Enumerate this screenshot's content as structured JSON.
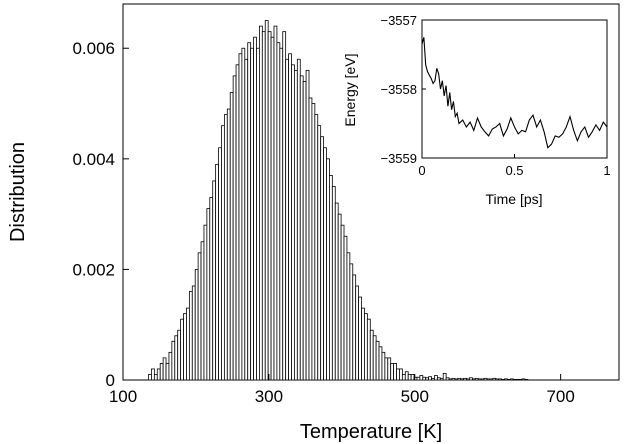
{
  "chart_data": [
    {
      "type": "bar",
      "xlabel": "Temperature [K]",
      "ylabel": "Distribution",
      "xlim": [
        100,
        780
      ],
      "ylim": [
        0,
        0.0068
      ],
      "xticks": [
        100,
        300,
        500,
        700
      ],
      "xtick_labels": [
        "100",
        "300",
        "500",
        "700"
      ],
      "yticks": [
        0,
        0.002,
        0.004,
        0.006
      ],
      "ytick_labels": [
        "0",
        "0.002",
        "0.004",
        "0.006"
      ],
      "bin_width": 4,
      "bins": [
        {
          "x": 137,
          "y": 0.0001
        },
        {
          "x": 141,
          "y": 0.0002
        },
        {
          "x": 145,
          "y": 0.0001
        },
        {
          "x": 149,
          "y": 0.0002
        },
        {
          "x": 153,
          "y": 0.0003
        },
        {
          "x": 157,
          "y": 0.0004
        },
        {
          "x": 161,
          "y": 0.0003
        },
        {
          "x": 165,
          "y": 0.0005
        },
        {
          "x": 169,
          "y": 0.0007
        },
        {
          "x": 173,
          "y": 0.0008
        },
        {
          "x": 177,
          "y": 0.0009
        },
        {
          "x": 181,
          "y": 0.0011
        },
        {
          "x": 185,
          "y": 0.0012
        },
        {
          "x": 189,
          "y": 0.0013
        },
        {
          "x": 193,
          "y": 0.0016
        },
        {
          "x": 197,
          "y": 0.0017
        },
        {
          "x": 201,
          "y": 0.002
        },
        {
          "x": 205,
          "y": 0.0023
        },
        {
          "x": 209,
          "y": 0.0025
        },
        {
          "x": 213,
          "y": 0.0028
        },
        {
          "x": 217,
          "y": 0.0031
        },
        {
          "x": 221,
          "y": 0.0033
        },
        {
          "x": 225,
          "y": 0.0036
        },
        {
          "x": 229,
          "y": 0.0039
        },
        {
          "x": 233,
          "y": 0.0042
        },
        {
          "x": 237,
          "y": 0.0046
        },
        {
          "x": 241,
          "y": 0.0048
        },
        {
          "x": 245,
          "y": 0.0049
        },
        {
          "x": 249,
          "y": 0.0052
        },
        {
          "x": 253,
          "y": 0.0055
        },
        {
          "x": 257,
          "y": 0.0057
        },
        {
          "x": 261,
          "y": 0.0059
        },
        {
          "x": 265,
          "y": 0.006
        },
        {
          "x": 269,
          "y": 0.0058
        },
        {
          "x": 273,
          "y": 0.0061
        },
        {
          "x": 277,
          "y": 0.006
        },
        {
          "x": 281,
          "y": 0.0062
        },
        {
          "x": 285,
          "y": 0.006
        },
        {
          "x": 289,
          "y": 0.0064
        },
        {
          "x": 293,
          "y": 0.0063
        },
        {
          "x": 297,
          "y": 0.0065
        },
        {
          "x": 301,
          "y": 0.0063
        },
        {
          "x": 305,
          "y": 0.0062
        },
        {
          "x": 309,
          "y": 0.0064
        },
        {
          "x": 313,
          "y": 0.0061
        },
        {
          "x": 317,
          "y": 0.006
        },
        {
          "x": 321,
          "y": 0.0063
        },
        {
          "x": 325,
          "y": 0.0058
        },
        {
          "x": 329,
          "y": 0.0059
        },
        {
          "x": 333,
          "y": 0.0057
        },
        {
          "x": 337,
          "y": 0.0056
        },
        {
          "x": 341,
          "y": 0.0058
        },
        {
          "x": 345,
          "y": 0.0055
        },
        {
          "x": 349,
          "y": 0.0054
        },
        {
          "x": 353,
          "y": 0.0056
        },
        {
          "x": 357,
          "y": 0.0051
        },
        {
          "x": 361,
          "y": 0.005
        },
        {
          "x": 365,
          "y": 0.0048
        },
        {
          "x": 369,
          "y": 0.0046
        },
        {
          "x": 373,
          "y": 0.0044
        },
        {
          "x": 377,
          "y": 0.0042
        },
        {
          "x": 381,
          "y": 0.004
        },
        {
          "x": 385,
          "y": 0.0037
        },
        {
          "x": 389,
          "y": 0.0035
        },
        {
          "x": 393,
          "y": 0.0032
        },
        {
          "x": 397,
          "y": 0.003
        },
        {
          "x": 401,
          "y": 0.0028
        },
        {
          "x": 405,
          "y": 0.0026
        },
        {
          "x": 409,
          "y": 0.0023
        },
        {
          "x": 413,
          "y": 0.0021
        },
        {
          "x": 417,
          "y": 0.0019
        },
        {
          "x": 421,
          "y": 0.0017
        },
        {
          "x": 425,
          "y": 0.0015
        },
        {
          "x": 429,
          "y": 0.0013
        },
        {
          "x": 433,
          "y": 0.0012
        },
        {
          "x": 437,
          "y": 0.0011
        },
        {
          "x": 441,
          "y": 0.0009
        },
        {
          "x": 445,
          "y": 0.0008
        },
        {
          "x": 449,
          "y": 0.0007
        },
        {
          "x": 453,
          "y": 0.0006
        },
        {
          "x": 457,
          "y": 0.0005
        },
        {
          "x": 461,
          "y": 0.0004
        },
        {
          "x": 465,
          "y": 0.0004
        },
        {
          "x": 469,
          "y": 0.0003
        },
        {
          "x": 473,
          "y": 0.0003
        },
        {
          "x": 477,
          "y": 0.0002
        },
        {
          "x": 481,
          "y": 0.0002
        },
        {
          "x": 485,
          "y": 0.0001
        },
        {
          "x": 489,
          "y": 0.00015
        },
        {
          "x": 493,
          "y": 0.0001
        },
        {
          "x": 497,
          "y": 0.0001
        },
        {
          "x": 501,
          "y": 5e-05
        },
        {
          "x": 505,
          "y": 5e-05
        },
        {
          "x": 509,
          "y": 8e-05
        },
        {
          "x": 513,
          "y": 5e-05
        },
        {
          "x": 517,
          "y": 4e-05
        },
        {
          "x": 521,
          "y": 6e-05
        },
        {
          "x": 525,
          "y": 3e-05
        },
        {
          "x": 529,
          "y": 8e-05
        },
        {
          "x": 533,
          "y": 4e-05
        },
        {
          "x": 537,
          "y": 3e-05
        },
        {
          "x": 541,
          "y": 0.00012
        },
        {
          "x": 545,
          "y": 4e-05
        },
        {
          "x": 549,
          "y": 2e-05
        },
        {
          "x": 553,
          "y": 3e-05
        },
        {
          "x": 557,
          "y": 2e-05
        },
        {
          "x": 561,
          "y": 3e-05
        },
        {
          "x": 565,
          "y": 2e-05
        },
        {
          "x": 569,
          "y": 3e-05
        },
        {
          "x": 573,
          "y": 2e-05
        },
        {
          "x": 577,
          "y": 4e-05
        },
        {
          "x": 581,
          "y": 2e-05
        },
        {
          "x": 585,
          "y": 3e-05
        },
        {
          "x": 589,
          "y": 2e-05
        },
        {
          "x": 593,
          "y": 2e-05
        },
        {
          "x": 597,
          "y": 3e-05
        },
        {
          "x": 601,
          "y": 2e-05
        },
        {
          "x": 605,
          "y": 2e-05
        },
        {
          "x": 609,
          "y": 3e-05
        },
        {
          "x": 613,
          "y": 2e-05
        },
        {
          "x": 617,
          "y": 2e-05
        },
        {
          "x": 621,
          "y": 1e-05
        },
        {
          "x": 625,
          "y": 2e-05
        },
        {
          "x": 629,
          "y": 1e-05
        },
        {
          "x": 633,
          "y": 2e-05
        },
        {
          "x": 637,
          "y": 1e-05
        },
        {
          "x": 641,
          "y": 1e-05
        },
        {
          "x": 645,
          "y": 1e-05
        },
        {
          "x": 649,
          "y": 2e-05
        },
        {
          "x": 653,
          "y": 1e-05
        }
      ]
    },
    {
      "type": "line",
      "xlabel": "Time [ps]",
      "ylabel": "Energy [eV]",
      "xlim": [
        0,
        1
      ],
      "ylim": [
        -3559,
        -3557
      ],
      "xticks": [
        0,
        0.5,
        1
      ],
      "xtick_labels": [
        "0",
        "0.5",
        "1"
      ],
      "yticks": [
        -3557,
        -3558,
        -3559
      ],
      "ytick_labels": [
        "−3557",
        "−3558",
        "−3559"
      ],
      "x": [
        0,
        0.01,
        0.02,
        0.03,
        0.04,
        0.05,
        0.06,
        0.07,
        0.08,
        0.09,
        0.1,
        0.11,
        0.12,
        0.13,
        0.14,
        0.15,
        0.16,
        0.17,
        0.18,
        0.19,
        0.2,
        0.22,
        0.24,
        0.26,
        0.28,
        0.3,
        0.32,
        0.34,
        0.36,
        0.38,
        0.4,
        0.42,
        0.44,
        0.46,
        0.48,
        0.5,
        0.52,
        0.54,
        0.56,
        0.58,
        0.6,
        0.62,
        0.64,
        0.66,
        0.68,
        0.7,
        0.72,
        0.74,
        0.76,
        0.78,
        0.8,
        0.82,
        0.84,
        0.86,
        0.88,
        0.9,
        0.92,
        0.94,
        0.96,
        0.98,
        1.0
      ],
      "y": [
        -3557.35,
        -3557.25,
        -3557.65,
        -3557.75,
        -3557.8,
        -3557.85,
        -3557.92,
        -3557.88,
        -3557.7,
        -3557.78,
        -3558.0,
        -3557.88,
        -3558.1,
        -3557.95,
        -3558.25,
        -3558.05,
        -3558.3,
        -3558.18,
        -3558.4,
        -3558.35,
        -3558.5,
        -3558.45,
        -3558.55,
        -3558.48,
        -3558.6,
        -3558.42,
        -3558.55,
        -3558.62,
        -3558.68,
        -3558.58,
        -3558.55,
        -3558.5,
        -3558.68,
        -3558.58,
        -3558.42,
        -3558.55,
        -3558.65,
        -3558.6,
        -3558.62,
        -3558.45,
        -3558.38,
        -3558.55,
        -3558.45,
        -3558.62,
        -3558.85,
        -3558.8,
        -3558.68,
        -3558.7,
        -3558.65,
        -3558.55,
        -3558.4,
        -3558.6,
        -3558.75,
        -3558.62,
        -3558.55,
        -3558.7,
        -3558.62,
        -3558.52,
        -3558.6,
        -3558.48,
        -3558.55
      ]
    }
  ]
}
